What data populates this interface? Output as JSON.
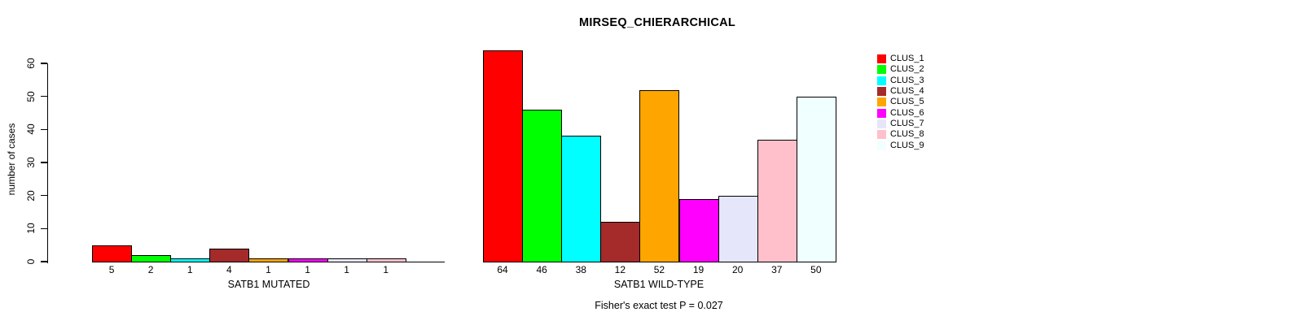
{
  "title": "MIRSEQ_CHIERARCHICAL",
  "footer": "Fisher's exact test P = 0.027",
  "chart_data": {
    "type": "bar",
    "title": "MIRSEQ_CHIERARCHICAL",
    "ylabel": "number of cases",
    "ylim": [
      0,
      60
    ],
    "yticks": [
      0,
      10,
      20,
      30,
      40,
      50,
      60
    ],
    "grid": false,
    "legend_position": "right",
    "bar_value_labels_shown": true,
    "categories": [
      "CLUS_1",
      "CLUS_2",
      "CLUS_3",
      "CLUS_4",
      "CLUS_5",
      "CLUS_6",
      "CLUS_7",
      "CLUS_8",
      "CLUS_9"
    ],
    "colors": [
      "#FF0000",
      "#00FF00",
      "#00FFFF",
      "#A52A2A",
      "#FFA500",
      "#FF00FF",
      "#E6E6FA",
      "#FFC0CB",
      "#F0FFFF"
    ],
    "series": [
      {
        "name": "SATB1 MUTATED",
        "values": [
          5,
          2,
          1,
          4,
          1,
          1,
          1,
          1,
          0
        ]
      },
      {
        "name": "SATB1 WILD-TYPE",
        "values": [
          64,
          46,
          38,
          12,
          52,
          19,
          20,
          37,
          50
        ]
      }
    ],
    "annotation": "Fisher's exact test P = 0.027",
    "p_value": "0.027"
  }
}
